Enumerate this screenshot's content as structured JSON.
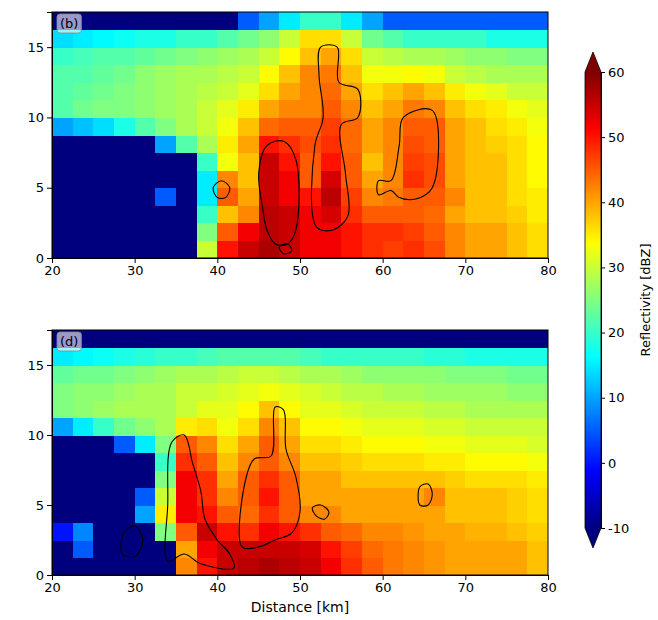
{
  "chart_data": [
    {
      "type": "heatmap",
      "title": "(b)",
      "xlim": [
        20,
        80
      ],
      "xticks": [
        20,
        30,
        40,
        50,
        60,
        70,
        80
      ],
      "ylim": [
        0,
        17.5
      ],
      "yticks": [
        0,
        5,
        10,
        15
      ],
      "x_edges": [
        20,
        22.5,
        25,
        27.5,
        30,
        32.5,
        35,
        37.5,
        40,
        42.5,
        45,
        47.5,
        50,
        52.5,
        55,
        57.5,
        60,
        62.5,
        65,
        67.5,
        70,
        72.5,
        75,
        77.5,
        80
      ],
      "y_edges": [
        0,
        1.25,
        2.5,
        3.75,
        5,
        6.25,
        7.5,
        8.75,
        10,
        11.25,
        12.5,
        13.75,
        15,
        16.25,
        17.5
      ],
      "cells": [
        [
          -10,
          -10,
          -10,
          -10,
          -10,
          -10,
          -10,
          30,
          50,
          55,
          57,
          55,
          52,
          52,
          50,
          48,
          47,
          48,
          46,
          42,
          40,
          40,
          38,
          36
        ],
        [
          -10,
          -10,
          -10,
          -10,
          -10,
          -10,
          -10,
          25,
          45,
          52,
          56,
          55,
          52,
          52,
          50,
          48,
          48,
          47,
          45,
          42,
          40,
          40,
          38,
          36
        ],
        [
          -10,
          -10,
          -10,
          -10,
          -10,
          -10,
          -10,
          20,
          38,
          42,
          56,
          55,
          52,
          54,
          48,
          45,
          45,
          45,
          44,
          40,
          38,
          38,
          37,
          35
        ],
        [
          -10,
          -10,
          -10,
          -10,
          -10,
          5,
          -10,
          15,
          45,
          40,
          55,
          52,
          50,
          56,
          47,
          42,
          43,
          45,
          45,
          42,
          38,
          38,
          36,
          35
        ],
        [
          -10,
          -10,
          -10,
          -10,
          -10,
          -10,
          -10,
          15,
          42,
          38,
          55,
          52,
          45,
          54,
          45,
          40,
          42,
          48,
          46,
          40,
          38,
          38,
          36,
          34
        ],
        [
          -10,
          -10,
          -10,
          -10,
          -10,
          -10,
          -10,
          20,
          33,
          38,
          55,
          50,
          45,
          50,
          45,
          38,
          42,
          47,
          46,
          40,
          38,
          38,
          36,
          34
        ],
        [
          -10,
          -10,
          -10,
          -10,
          -10,
          10,
          22,
          28,
          35,
          40,
          50,
          48,
          46,
          48,
          44,
          40,
          42,
          46,
          45,
          40,
          38,
          37,
          36,
          34
        ],
        [
          10,
          12,
          14,
          18,
          22,
          25,
          28,
          30,
          33,
          38,
          44,
          45,
          45,
          47,
          44,
          40,
          42,
          45,
          45,
          40,
          38,
          36,
          35,
          33
        ],
        [
          22,
          24,
          25,
          25,
          26,
          27,
          28,
          30,
          32,
          35,
          40,
          42,
          42,
          45,
          42,
          38,
          40,
          43,
          42,
          38,
          36,
          35,
          33,
          32
        ],
        [
          22,
          23,
          24,
          25,
          26,
          27,
          28,
          29,
          30,
          32,
          36,
          40,
          42,
          44,
          40,
          36,
          38,
          40,
          38,
          35,
          33,
          32,
          30,
          30
        ],
        [
          22,
          22,
          23,
          24,
          26,
          27,
          28,
          28,
          29,
          30,
          34,
          38,
          42,
          43,
          38,
          33,
          33,
          34,
          33,
          30,
          29,
          28,
          28,
          28
        ],
        [
          20,
          21,
          22,
          22,
          23,
          24,
          25,
          26,
          27,
          28,
          30,
          34,
          38,
          40,
          36,
          30,
          29,
          28,
          28,
          27,
          26,
          26,
          25,
          25
        ],
        [
          14,
          15,
          16,
          17,
          18,
          18,
          20,
          20,
          22,
          24,
          26,
          30,
          36,
          36,
          30,
          24,
          22,
          20,
          20,
          20,
          20,
          18,
          18,
          18
        ],
        [
          -10,
          -10,
          -10,
          -10,
          -10,
          -10,
          -10,
          -10,
          -10,
          5,
          10,
          15,
          20,
          20,
          15,
          10,
          5,
          5,
          5,
          5,
          5,
          5,
          5,
          5
        ]
      ],
      "contours": [
        {
          "x": [
            45.5,
            45,
            46,
            48,
            49.5,
            49.5,
            48.5,
            47,
            46
          ],
          "y": [
            3.5,
            6,
            8,
            8.3,
            7,
            2,
            1,
            1,
            2
          ]
        },
        {
          "x": [
            52,
            51.8,
            52.8,
            52.3,
            52.5,
            54.5,
            54.7,
            57,
            57,
            55,
            55.5,
            55.8,
            54
          ],
          "y": [
            2.2,
            8,
            10,
            13,
            15,
            15,
            12.5,
            12,
            10,
            9.5,
            6,
            3,
            2
          ]
        },
        {
          "x": [
            59.5,
            59.5,
            61,
            62,
            62.5,
            66,
            66,
            64,
            62,
            61
          ],
          "y": [
            4.5,
            5.5,
            5.5,
            8,
            10,
            10.5,
            5,
            4.2,
            4.3,
            4.8
          ]
        },
        {
          "x": [
            40,
            39.5,
            40.5,
            41.5,
            41
          ],
          "y": [
            4.3,
            5,
            5.5,
            5,
            4.3
          ]
        },
        {
          "x": [
            48,
            47.5,
            48.5,
            49
          ],
          "y": [
            0.3,
            0.8,
            1,
            0.5
          ]
        }
      ],
      "colorbar": {
        "range": [
          -10,
          60
        ],
        "ticks": [
          -10,
          0,
          10,
          20,
          30,
          40,
          50,
          60
        ],
        "label": "Reflectivity [dBZ]"
      }
    },
    {
      "type": "heatmap",
      "title": "(d)",
      "xlabel": "Distance [km]",
      "xlim": [
        20,
        80
      ],
      "xticks": [
        20,
        30,
        40,
        50,
        60,
        70,
        80
      ],
      "ylim": [
        0,
        17.5
      ],
      "yticks": [
        0,
        5,
        10,
        15
      ],
      "x_edges": [
        20,
        22.5,
        25,
        27.5,
        30,
        32.5,
        35,
        37.5,
        40,
        42.5,
        45,
        47.5,
        50,
        52.5,
        55,
        57.5,
        60,
        62.5,
        65,
        67.5,
        70,
        72.5,
        75,
        77.5,
        80
      ],
      "y_edges": [
        0,
        1.25,
        2.5,
        3.75,
        5,
        6.25,
        7.5,
        8.75,
        10,
        11.25,
        12.5,
        13.75,
        15,
        16.25,
        17.5
      ],
      "cells": [
        [
          -10,
          -10,
          -10,
          -10,
          -10,
          -10,
          42,
          50,
          55,
          56,
          57,
          56,
          55,
          52,
          48,
          45,
          43,
          42,
          41,
          40,
          40,
          40,
          40,
          38
        ],
        [
          -10,
          5,
          -10,
          -10,
          -10,
          -10,
          40,
          52,
          55,
          55,
          55,
          55,
          54,
          50,
          47,
          44,
          43,
          42,
          41,
          40,
          40,
          40,
          40,
          38
        ],
        [
          0,
          8,
          -10,
          -10,
          -10,
          25,
          45,
          55,
          50,
          48,
          52,
          50,
          48,
          45,
          44,
          42,
          42,
          41,
          40,
          40,
          39,
          39,
          38,
          37
        ],
        [
          -10,
          -10,
          -10,
          -10,
          10,
          35,
          52,
          50,
          45,
          44,
          48,
          45,
          42,
          42,
          40,
          40,
          40,
          40,
          40,
          38,
          38,
          38,
          37,
          36
        ],
        [
          -10,
          -10,
          -10,
          -10,
          5,
          30,
          52,
          48,
          42,
          45,
          50,
          45,
          40,
          40,
          40,
          40,
          40,
          40,
          42,
          38,
          38,
          38,
          37,
          36
        ],
        [
          -10,
          -10,
          -10,
          -10,
          -10,
          25,
          52,
          48,
          40,
          45,
          48,
          45,
          40,
          40,
          38,
          38,
          38,
          38,
          38,
          37,
          36,
          36,
          36,
          35
        ],
        [
          -10,
          -10,
          -10,
          -10,
          -10,
          20,
          48,
          45,
          38,
          42,
          45,
          42,
          38,
          38,
          37,
          36,
          36,
          36,
          35,
          35,
          34,
          34,
          34,
          33
        ],
        [
          -10,
          -10,
          -10,
          5,
          15,
          25,
          45,
          42,
          36,
          40,
          45,
          40,
          36,
          36,
          35,
          34,
          34,
          34,
          33,
          33,
          32,
          32,
          32,
          31
        ],
        [
          10,
          15,
          20,
          24,
          26,
          28,
          35,
          36,
          33,
          36,
          42,
          38,
          34,
          34,
          33,
          32,
          32,
          32,
          31,
          31,
          30,
          30,
          30,
          30
        ],
        [
          25,
          26,
          27,
          28,
          28,
          28,
          30,
          32,
          32,
          34,
          38,
          34,
          32,
          32,
          31,
          30,
          30,
          30,
          29,
          29,
          28,
          28,
          28,
          28
        ],
        [
          25,
          26,
          26,
          27,
          28,
          28,
          30,
          30,
          31,
          32,
          33,
          32,
          31,
          30,
          29,
          29,
          28,
          28,
          27,
          27,
          27,
          27,
          26,
          26
        ],
        [
          23,
          24,
          24,
          25,
          26,
          27,
          28,
          28,
          29,
          30,
          30,
          29,
          28,
          28,
          27,
          26,
          26,
          26,
          26,
          25,
          25,
          25,
          24,
          24
        ],
        [
          15,
          16,
          17,
          18,
          19,
          20,
          20,
          21,
          22,
          22,
          22,
          22,
          21,
          20,
          20,
          20,
          20,
          20,
          19,
          19,
          18,
          18,
          18,
          18
        ],
        [
          -10,
          -10,
          -10,
          -10,
          -10,
          -10,
          -10,
          -10,
          -10,
          -10,
          -10,
          -10,
          -10,
          -10,
          -10,
          -10,
          -10,
          -10,
          -10,
          -10,
          -10,
          -10,
          -10,
          -10
        ]
      ],
      "contours": [
        {
          "x": [
            34,
            34,
            34.5,
            36,
            37,
            38,
            38.5,
            40,
            41.5,
            42,
            38,
            36
          ],
          "y": [
            1,
            5,
            9.5,
            10,
            8,
            6,
            4,
            2.5,
            1.5,
            0.5,
            0.8,
            1.5
          ]
        },
        {
          "x": [
            43,
            43.5,
            44.5,
            46.5,
            47,
            48,
            48.3,
            49.5,
            50,
            49,
            47,
            45
          ],
          "y": [
            2,
            7,
            8.3,
            8.5,
            12,
            11.8,
            9,
            7,
            4.5,
            3,
            2.5,
            2
          ]
        },
        {
          "x": [
            28.5,
            28.7,
            30,
            31,
            30
          ],
          "y": [
            1.5,
            3,
            3.5,
            2.5,
            1.3
          ]
        },
        {
          "x": [
            52,
            51.5,
            52.5,
            53.5,
            53
          ],
          "y": [
            4.2,
            4.8,
            5,
            4.5,
            4
          ]
        },
        {
          "x": [
            64.5,
            64.5,
            65.5,
            66,
            65.5
          ],
          "y": [
            5,
            6.3,
            6.5,
            5.8,
            5
          ]
        }
      ]
    }
  ]
}
